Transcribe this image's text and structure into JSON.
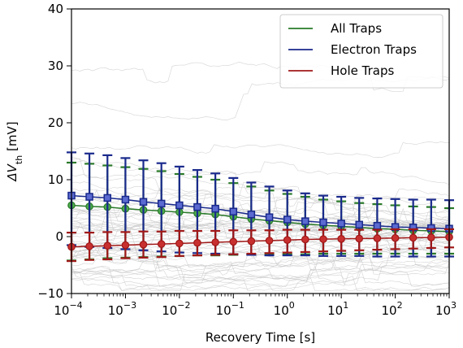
{
  "chart_data": {
    "type": "line",
    "xlabel": "Recovery Time  [s]",
    "ylabel_main": "ΔV",
    "ylabel_sub": "th",
    "ylabel_unit": "  [mV]",
    "x_scale": "log",
    "xlim": [
      0.0001,
      1000
    ],
    "ylim": [
      -10,
      40
    ],
    "x_ticks": [
      {
        "value": 0.0001,
        "base": "10",
        "exp": "−4"
      },
      {
        "value": 0.001,
        "base": "10",
        "exp": "−3"
      },
      {
        "value": 0.01,
        "base": "10",
        "exp": "−2"
      },
      {
        "value": 0.1,
        "base": "10",
        "exp": "−1"
      },
      {
        "value": 1,
        "base": "10",
        "exp": "0"
      },
      {
        "value": 10,
        "base": "10",
        "exp": "1"
      },
      {
        "value": 100,
        "base": "10",
        "exp": "2"
      },
      {
        "value": 1000,
        "base": "10",
        "exp": "3"
      }
    ],
    "y_ticks": [
      "−10",
      "0",
      "10",
      "20",
      "30",
      "40"
    ],
    "y_tick_values": [
      -10,
      0,
      10,
      20,
      30,
      40
    ],
    "legend_position": "top-right",
    "x": [
      0.0001,
      0.000215,
      0.000464,
      0.001,
      0.00215,
      0.00464,
      0.01,
      0.0215,
      0.0464,
      0.1,
      0.215,
      0.464,
      1,
      2.15,
      4.64,
      10,
      21.5,
      46.4,
      100,
      215,
      464,
      1000
    ],
    "series": [
      {
        "name": "All Traps",
        "color": "#2a7a2a",
        "marker": "circle",
        "values": [
          5.5,
          5.3,
          5.2,
          4.9,
          4.7,
          4.5,
          4.3,
          4.1,
          3.9,
          3.5,
          3.1,
          2.8,
          2.5,
          2.2,
          2.0,
          1.8,
          1.6,
          1.4,
          1.3,
          1.1,
          1.0,
          0.9
        ],
        "err_low": [
          -4.2,
          -4.0,
          -3.8,
          -3.7,
          -3.6,
          -3.5,
          -3.4,
          -3.3,
          -3.3,
          -3.2,
          -3.2,
          -3.1,
          -3.1,
          -3.1,
          -3.0,
          -3.0,
          -3.0,
          -3.0,
          -3.0,
          -3.0,
          -3.0,
          -3.0
        ],
        "err_high": [
          13.0,
          12.8,
          12.5,
          12.2,
          11.9,
          11.5,
          11.0,
          10.5,
          10.0,
          9.4,
          8.8,
          8.1,
          7.5,
          7.0,
          6.5,
          6.2,
          5.9,
          5.7,
          5.5,
          5.3,
          5.2,
          5.0
        ]
      },
      {
        "name": "Electron Traps",
        "color": "#1a2a8c",
        "marker": "square",
        "values": [
          7.2,
          7.0,
          6.8,
          6.5,
          6.1,
          5.8,
          5.5,
          5.2,
          4.9,
          4.4,
          3.9,
          3.4,
          3.0,
          2.7,
          2.5,
          2.3,
          2.1,
          1.9,
          1.7,
          1.6,
          1.5,
          1.4
        ],
        "err_low": [
          -1.5,
          -1.8,
          -2.0,
          -2.2,
          -2.4,
          -2.6,
          -2.8,
          -2.9,
          -3.0,
          -3.1,
          -3.2,
          -3.3,
          -3.3,
          -3.3,
          -3.4,
          -3.4,
          -3.4,
          -3.5,
          -3.5,
          -3.5,
          -3.5,
          -3.5
        ],
        "err_high": [
          14.8,
          14.6,
          14.3,
          13.8,
          13.4,
          12.9,
          12.3,
          11.7,
          11.1,
          10.3,
          9.5,
          8.8,
          8.1,
          7.6,
          7.2,
          7.0,
          6.8,
          6.7,
          6.6,
          6.5,
          6.5,
          6.4
        ]
      },
      {
        "name": "Hole Traps",
        "color": "#a01818",
        "marker": "circle",
        "values": [
          -1.8,
          -1.7,
          -1.6,
          -1.5,
          -1.4,
          -1.3,
          -1.2,
          -1.1,
          -1.0,
          -0.9,
          -0.8,
          -0.7,
          -0.6,
          -0.5,
          -0.45,
          -0.4,
          -0.35,
          -0.3,
          -0.25,
          -0.2,
          -0.15,
          -0.1
        ],
        "err_low": [
          -4.3,
          -4.1,
          -4.0,
          -3.8,
          -3.7,
          -3.6,
          -3.4,
          -3.3,
          -3.2,
          -3.1,
          -3.0,
          -2.9,
          -2.8,
          -2.7,
          -2.6,
          -2.5,
          -2.4,
          -2.3,
          -2.2,
          -2.1,
          -2.0,
          -1.9
        ],
        "err_high": [
          0.7,
          0.7,
          0.8,
          0.8,
          0.9,
          0.9,
          1.0,
          1.0,
          1.0,
          1.1,
          1.1,
          1.1,
          1.2,
          1.2,
          1.2,
          1.2,
          1.2,
          1.2,
          1.3,
          1.3,
          1.3,
          1.3
        ]
      }
    ],
    "background_traces": {
      "color": "#c8c8c8",
      "count": 60,
      "description": "individual device traces"
    }
  }
}
